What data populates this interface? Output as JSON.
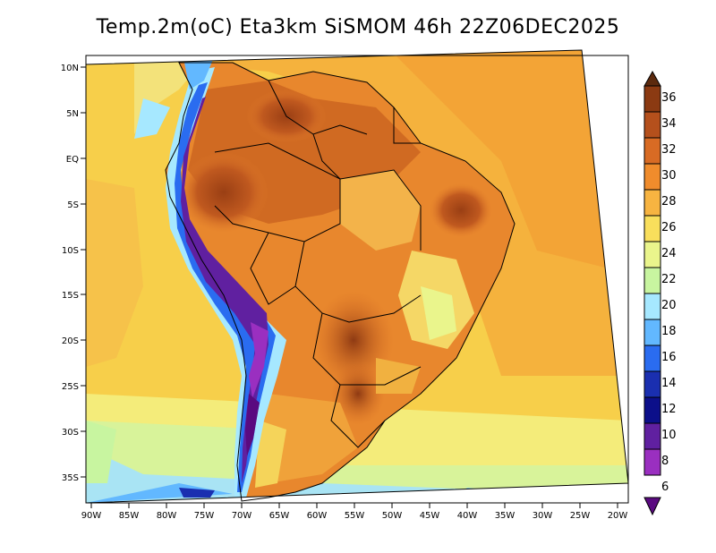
{
  "title": "Temp.2m(oC) Eta3km SiSMOM 46h 22Z06DEC2025",
  "y_axis_labels": [
    "10N",
    "5N",
    "EQ",
    "5S",
    "10S",
    "15S",
    "20S",
    "25S",
    "30S",
    "35S"
  ],
  "x_axis_labels": [
    "90W",
    "85W",
    "80W",
    "75W",
    "70W",
    "65W",
    "60W",
    "55W",
    "50W",
    "45W",
    "40W",
    "35W",
    "30W",
    "25W",
    "20W"
  ],
  "colorbar": {
    "labels": [
      "36",
      "34",
      "32",
      "30",
      "28",
      "26",
      "24",
      "22",
      "20",
      "18",
      "16",
      "14",
      "12",
      "10",
      "8",
      "6"
    ],
    "colors": [
      "#5c2a0e",
      "#8b3a12",
      "#b5501c",
      "#d86b24",
      "#f08c2c",
      "#f7b441",
      "#f9df5c",
      "#eaf58c",
      "#c8f5a0",
      "#a6e8ff",
      "#62b8ff",
      "#2a6cf0",
      "#1a2fb0",
      "#0c0f8a",
      "#6020a0",
      "#9a2fc0",
      "#5a0a80"
    ]
  }
}
